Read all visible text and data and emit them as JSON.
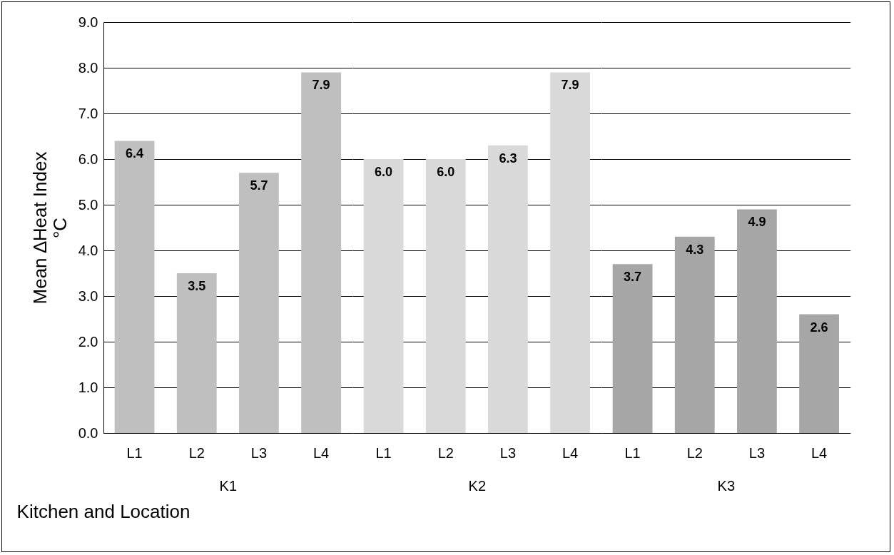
{
  "chart_data": {
    "type": "bar",
    "xlabel": "Kitchen and Location",
    "ylabel": "Mean ∆Heat Index\n°C",
    "categories": [
      "L1",
      "L2",
      "L3",
      "L4",
      "L1",
      "L2",
      "L3",
      "L4",
      "L1",
      "L2",
      "L3",
      "L4"
    ],
    "values": [
      6.4,
      3.5,
      5.7,
      7.9,
      6.0,
      6.0,
      6.3,
      7.9,
      3.7,
      4.3,
      4.9,
      2.6
    ],
    "colors": [
      "#bfbfbf",
      "#bfbfbf",
      "#bfbfbf",
      "#bfbfbf",
      "#d9d9d9",
      "#d9d9d9",
      "#d9d9d9",
      "#d9d9d9",
      "#a6a6a6",
      "#a6a6a6",
      "#a6a6a6",
      "#a6a6a6"
    ],
    "value_labels": [
      "6.4",
      "3.5",
      "5.7",
      "7.9",
      "6.0",
      "6.0",
      "6.3",
      "7.9",
      "3.7",
      "4.3",
      "4.9",
      "2.6"
    ],
    "annotations": [
      "K1",
      "K2",
      "K3"
    ],
    "ylim": [
      0,
      9
    ],
    "yticks": [
      {
        "value": 0,
        "label": "0.0"
      },
      {
        "value": 1,
        "label": "1.0"
      },
      {
        "value": 2,
        "label": "2.0"
      },
      {
        "value": 3,
        "label": "3.0"
      },
      {
        "value": 4,
        "label": "4.0"
      },
      {
        "value": 5,
        "label": "5.0"
      },
      {
        "value": 6,
        "label": "6.0"
      },
      {
        "value": 7,
        "label": "7.0"
      },
      {
        "value": 8,
        "label": "8.0"
      },
      {
        "value": 9,
        "label": "9.0"
      }
    ],
    "grid": "y"
  }
}
